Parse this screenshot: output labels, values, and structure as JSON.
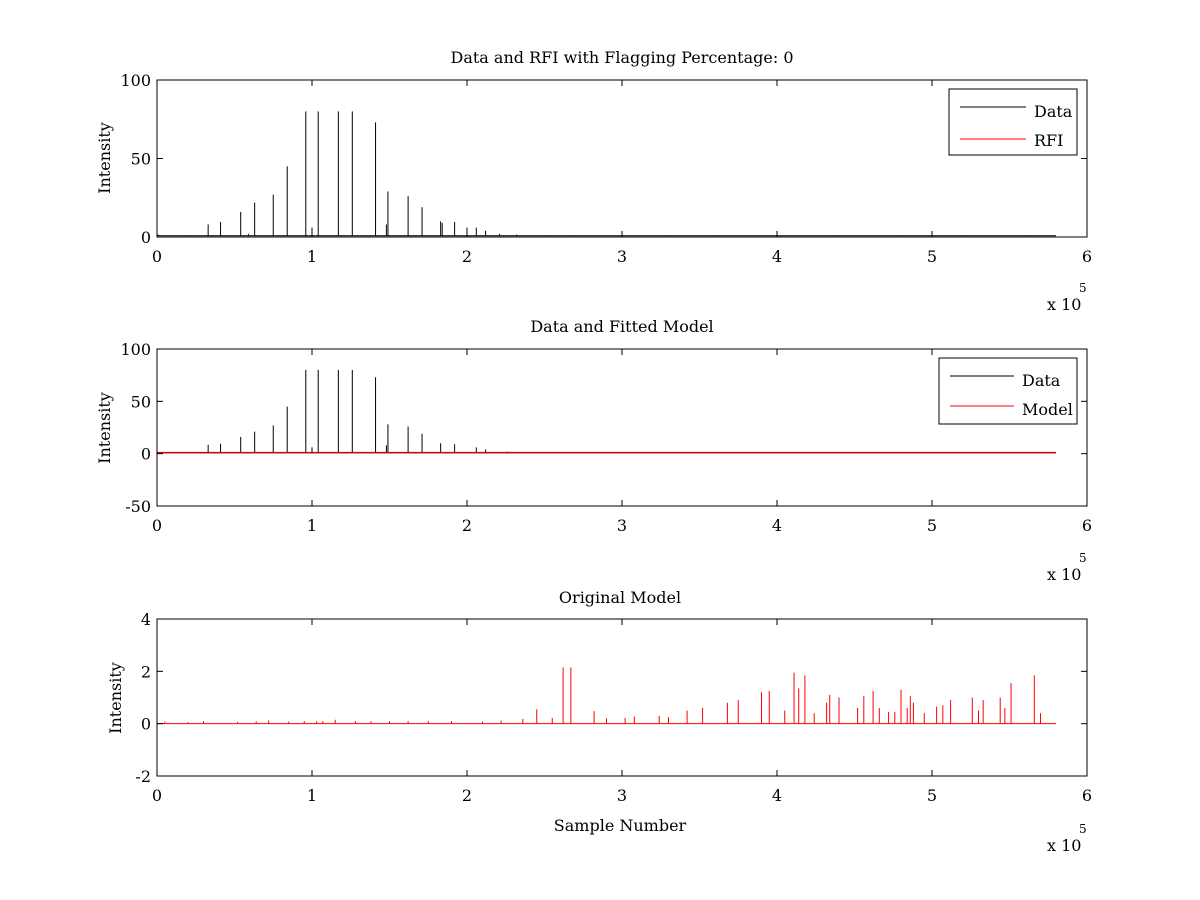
{
  "chart_data": [
    {
      "type": "line",
      "title": "Data and RFI with Flagging Percentage: 0",
      "xlabel": "",
      "ylabel": "Intensity",
      "xlim": [
        0,
        600000
      ],
      "ylim": [
        0,
        100
      ],
      "xticks": [
        0,
        1,
        2,
        3,
        4,
        5,
        6
      ],
      "yticks": [
        0,
        50,
        100
      ],
      "x_multiplier": "x 10",
      "x_multiplier_exp": "5",
      "grid": false,
      "legend_position": "top-right",
      "legend": [
        "Data",
        "RFI"
      ],
      "series": [
        {
          "name": "Data",
          "color": "#000000",
          "peaks": [
            [
              1000,
              1.5
            ],
            [
              22000,
              1
            ],
            [
              33000,
              8
            ],
            [
              41000,
              9.5
            ],
            [
              54000,
              16
            ],
            [
              59000,
              2
            ],
            [
              63000,
              22
            ],
            [
              75000,
              27
            ],
            [
              84000,
              45
            ],
            [
              96000,
              80
            ],
            [
              100000,
              6
            ],
            [
              104000,
              80
            ],
            [
              117000,
              80
            ],
            [
              126000,
              80
            ],
            [
              141000,
              73
            ],
            [
              148000,
              8
            ],
            [
              149000,
              29
            ],
            [
              162000,
              26
            ],
            [
              171000,
              19
            ],
            [
              183000,
              10
            ],
            [
              184000,
              9
            ],
            [
              192000,
              9.5
            ],
            [
              200000,
              6
            ],
            [
              206000,
              6
            ],
            [
              212000,
              4
            ],
            [
              221000,
              2
            ],
            [
              232000,
              1.5
            ],
            [
              250000,
              1
            ],
            [
              270000,
              1
            ],
            [
              300000,
              1
            ],
            [
              330000,
              1
            ],
            [
              360000,
              1
            ],
            [
              400000,
              1
            ],
            [
              440000,
              1
            ],
            [
              480000,
              1
            ],
            [
              520000,
              1
            ],
            [
              560000,
              1
            ]
          ],
          "baseline": 0.8,
          "x_end": 580000
        },
        {
          "name": "RFI",
          "color": "#ff0000",
          "peaks": [],
          "baseline": 0,
          "x_end": 580000
        }
      ]
    },
    {
      "type": "line",
      "title": "Data and Fitted Model",
      "xlabel": "",
      "ylabel": "Intensity",
      "xlim": [
        0,
        600000
      ],
      "ylim": [
        -50,
        100
      ],
      "xticks": [
        0,
        1,
        2,
        3,
        4,
        5,
        6
      ],
      "yticks": [
        -50,
        0,
        50,
        100
      ],
      "x_multiplier": "x 10",
      "x_multiplier_exp": "5",
      "grid": false,
      "legend_position": "top-right",
      "legend": [
        "Data",
        "Model"
      ],
      "series": [
        {
          "name": "Data",
          "color": "#000000",
          "peaks": [
            [
              1000,
              1.5
            ],
            [
              33000,
              8.5
            ],
            [
              41000,
              9.5
            ],
            [
              54000,
              16
            ],
            [
              63000,
              21
            ],
            [
              75000,
              27
            ],
            [
              84000,
              45
            ],
            [
              96000,
              80
            ],
            [
              100000,
              6
            ],
            [
              104000,
              80
            ],
            [
              117000,
              80
            ],
            [
              126000,
              80
            ],
            [
              141000,
              73
            ],
            [
              148000,
              8
            ],
            [
              149000,
              28
            ],
            [
              162000,
              26
            ],
            [
              171000,
              19
            ],
            [
              183000,
              10
            ],
            [
              192000,
              9
            ],
            [
              206000,
              6
            ],
            [
              212000,
              4
            ],
            [
              226000,
              2
            ]
          ],
          "baseline": 0.8,
          "x_end": 580000
        },
        {
          "name": "Model",
          "color": "#ff0000",
          "peaks": [],
          "baseline": 1.2,
          "x_end": 580000
        }
      ]
    },
    {
      "type": "line",
      "title": "Original Model",
      "xlabel": "Sample Number",
      "ylabel": "Intensity",
      "xlim": [
        0,
        600000
      ],
      "ylim": [
        -2,
        4
      ],
      "xticks": [
        0,
        1,
        2,
        3,
        4,
        5,
        6
      ],
      "yticks": [
        -2,
        0,
        2,
        4
      ],
      "x_multiplier": "x 10",
      "x_multiplier_exp": "5",
      "grid": false,
      "legend_position": "none",
      "legend": [],
      "series": [
        {
          "name": "",
          "color": "#ff0000",
          "peaks": [
            [
              5000,
              0.08
            ],
            [
              20000,
              0.06
            ],
            [
              30000,
              0.1
            ],
            [
              52000,
              0.07
            ],
            [
              64000,
              0.09
            ],
            [
              72000,
              0.12
            ],
            [
              85000,
              0.08
            ],
            [
              95000,
              0.1
            ],
            [
              103000,
              0.09
            ],
            [
              107000,
              0.1
            ],
            [
              115000,
              0.15
            ],
            [
              128000,
              0.1
            ],
            [
              138000,
              0.1
            ],
            [
              150000,
              0.09
            ],
            [
              162000,
              0.1
            ],
            [
              175000,
              0.1
            ],
            [
              190000,
              0.1
            ],
            [
              210000,
              0.08
            ],
            [
              222000,
              0.12
            ],
            [
              236000,
              0.18
            ],
            [
              245000,
              0.55
            ],
            [
              255000,
              0.22
            ],
            [
              262000,
              2.15
            ],
            [
              267000,
              2.15
            ],
            [
              282000,
              0.48
            ],
            [
              290000,
              0.2
            ],
            [
              302000,
              0.22
            ],
            [
              308000,
              0.27
            ],
            [
              324000,
              0.3
            ],
            [
              330000,
              0.25
            ],
            [
              342000,
              0.5
            ],
            [
              352000,
              0.6
            ],
            [
              368000,
              0.8
            ],
            [
              375000,
              0.9
            ],
            [
              390000,
              1.2
            ],
            [
              395000,
              1.25
            ],
            [
              405000,
              0.5
            ],
            [
              411000,
              1.95
            ],
            [
              414000,
              1.35
            ],
            [
              418000,
              1.85
            ],
            [
              424000,
              0.4
            ],
            [
              432000,
              0.8
            ],
            [
              434000,
              1.1
            ],
            [
              440000,
              1.0
            ],
            [
              452000,
              0.6
            ],
            [
              456000,
              1.05
            ],
            [
              462000,
              1.25
            ],
            [
              466000,
              0.6
            ],
            [
              472000,
              0.45
            ],
            [
              476000,
              0.45
            ],
            [
              480000,
              1.3
            ],
            [
              484000,
              0.6
            ],
            [
              486000,
              1.05
            ],
            [
              488000,
              0.8
            ],
            [
              495000,
              0.4
            ],
            [
              503000,
              0.65
            ],
            [
              507000,
              0.7
            ],
            [
              512000,
              0.9
            ],
            [
              526000,
              1.0
            ],
            [
              530000,
              0.5
            ],
            [
              533000,
              0.9
            ],
            [
              544000,
              1.0
            ],
            [
              547000,
              0.6
            ],
            [
              551000,
              1.55
            ],
            [
              566000,
              1.85
            ],
            [
              570000,
              0.4
            ]
          ],
          "baseline": 0,
          "x_end": 580000
        }
      ]
    }
  ]
}
